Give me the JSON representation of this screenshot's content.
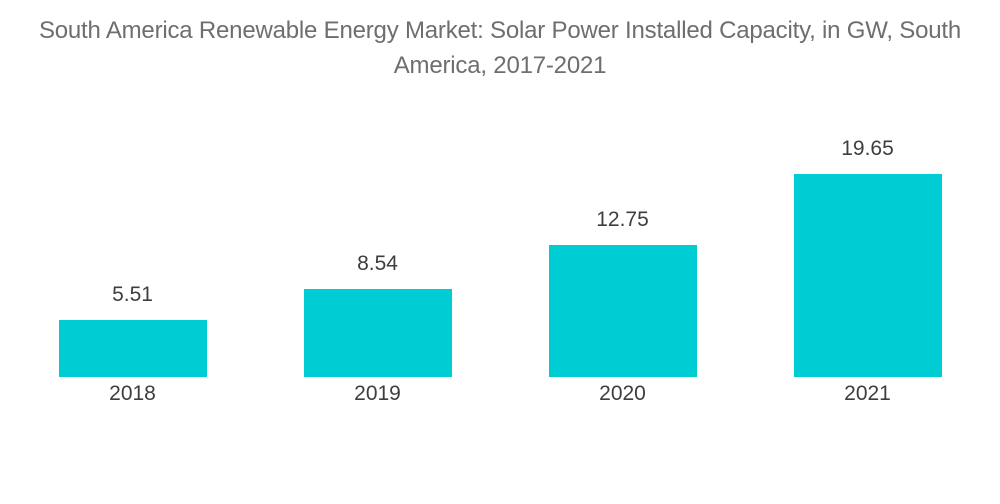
{
  "title": "South America Renewable Energy Market: Solar Power Installed Capacity, in GW, South America, 2017-2021",
  "chart_data": {
    "type": "bar",
    "title": "South America Renewable Energy Market: Solar Power Installed Capacity, in GW, South America, 2017-2021",
    "categories": [
      "2018",
      "2019",
      "2020",
      "2021"
    ],
    "values": [
      5.51,
      8.54,
      12.75,
      19.65
    ],
    "value_labels": [
      "5.51",
      "8.54",
      "12.75",
      "19.65"
    ],
    "xlabel": "",
    "ylabel": "",
    "ylim": [
      0,
      20.1
    ],
    "grid": false,
    "legend": false,
    "bar_color": "#00ccd3",
    "label_color": "#3e3e3e",
    "title_color": "#6e6e6e"
  }
}
